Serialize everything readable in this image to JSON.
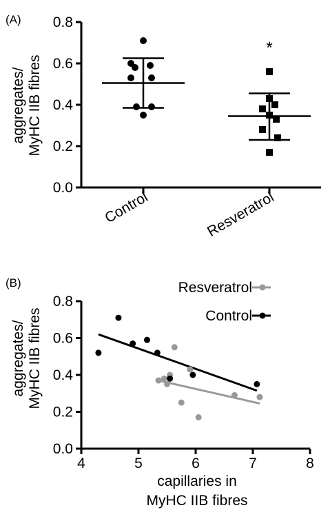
{
  "chart_data": [
    {
      "panel_label": "(A)",
      "type": "scatter",
      "ylabel_lines": [
        "aggregates/",
        "MyHC IIB fibres"
      ],
      "xlabel": "",
      "ylim": [
        0,
        0.8
      ],
      "yticks": [
        0.0,
        0.2,
        0.4,
        0.6,
        0.8
      ],
      "ytick_labels": [
        "0.0",
        "0.2",
        "0.4",
        "0.6",
        "0.8"
      ],
      "categories": [
        "Control",
        "Resveratrol"
      ],
      "significance_marker": "*",
      "grid": false,
      "series": [
        {
          "name": "Control",
          "marker": "circle",
          "values": [
            0.71,
            0.6,
            0.59,
            0.58,
            0.53,
            0.53,
            0.39,
            0.39,
            0.35
          ],
          "mean": 0.505,
          "sd_low": 0.385,
          "sd_high": 0.625
        },
        {
          "name": "Resveratrol",
          "marker": "square",
          "values": [
            0.56,
            0.43,
            0.4,
            0.38,
            0.35,
            0.33,
            0.28,
            0.24,
            0.17
          ],
          "mean": 0.345,
          "sd_low": 0.23,
          "sd_high": 0.455
        }
      ]
    },
    {
      "panel_label": "(B)",
      "type": "scatter",
      "ylabel_lines": [
        "aggregates/",
        "MyHC IIB fibres"
      ],
      "xlabel_lines": [
        "capillaries in",
        "MyHC IIB fibres"
      ],
      "xlim": [
        4,
        8
      ],
      "xticks": [
        4,
        5,
        6,
        7,
        8
      ],
      "ylim": [
        0,
        0.8
      ],
      "yticks": [
        0.0,
        0.2,
        0.4,
        0.6,
        0.8
      ],
      "ytick_labels": [
        "0.0",
        "0.2",
        "0.4",
        "0.6",
        "0.8"
      ],
      "legend_position": "top-right",
      "grid": false,
      "series": [
        {
          "name": "Resveratrol",
          "color": "#999999",
          "points": [
            [
              5.35,
              0.37
            ],
            [
              5.45,
              0.38
            ],
            [
              5.5,
              0.35
            ],
            [
              5.55,
              0.4
            ],
            [
              5.63,
              0.55
            ],
            [
              5.75,
              0.25
            ],
            [
              5.9,
              0.43
            ],
            [
              6.05,
              0.17
            ],
            [
              6.68,
              0.29
            ],
            [
              7.12,
              0.28
            ]
          ],
          "fit": [
            [
              5.35,
              0.37
            ],
            [
              7.12,
              0.245
            ]
          ]
        },
        {
          "name": "Control",
          "color": "#000000",
          "points": [
            [
              4.3,
              0.52
            ],
            [
              4.65,
              0.71
            ],
            [
              4.9,
              0.57
            ],
            [
              5.15,
              0.59
            ],
            [
              5.33,
              0.52
            ],
            [
              5.55,
              0.38
            ],
            [
              5.95,
              0.4
            ],
            [
              7.07,
              0.35
            ]
          ],
          "fit": [
            [
              4.3,
              0.62
            ],
            [
              7.07,
              0.315
            ]
          ]
        }
      ]
    }
  ]
}
